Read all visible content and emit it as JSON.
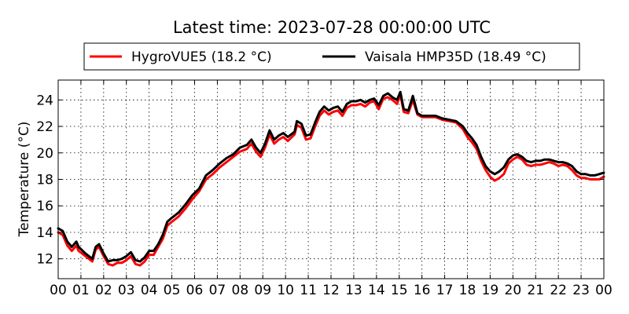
{
  "chart_data": {
    "type": "line",
    "title": "Latest time: 2023-07-28 00:00:00 UTC",
    "ylabel": "Temperature (°C)",
    "xlabel": "",
    "xlim": [
      0,
      24
    ],
    "ylim": [
      10.5,
      25.5
    ],
    "grid": true,
    "legend_placement": "top",
    "x_ticks": [
      0,
      1,
      2,
      3,
      4,
      5,
      6,
      7,
      8,
      9,
      10,
      11,
      12,
      13,
      14,
      15,
      16,
      17,
      18,
      19,
      20,
      21,
      22,
      23,
      24
    ],
    "x_tick_labels": [
      "00",
      "01",
      "02",
      "03",
      "04",
      "05",
      "06",
      "07",
      "08",
      "09",
      "10",
      "11",
      "12",
      "13",
      "14",
      "15",
      "16",
      "17",
      "18",
      "19",
      "20",
      "21",
      "22",
      "23",
      "00"
    ],
    "y_ticks": [
      12,
      14,
      16,
      18,
      20,
      22,
      24
    ],
    "y_tick_labels": [
      "12",
      "14",
      "16",
      "18",
      "20",
      "22",
      "24"
    ],
    "series": [
      {
        "name": "HygroVUE5 (18.2 °C)",
        "color": "#ff0000",
        "points": [
          [
            0,
            14.0
          ],
          [
            0.2,
            13.8
          ],
          [
            0.4,
            13.0
          ],
          [
            0.6,
            12.6
          ],
          [
            0.8,
            13.0
          ],
          [
            0.9,
            12.6
          ],
          [
            1.2,
            12.2
          ],
          [
            1.5,
            11.8
          ],
          [
            1.65,
            12.7
          ],
          [
            1.8,
            12.9
          ],
          [
            2.0,
            12.2
          ],
          [
            2.2,
            11.6
          ],
          [
            2.4,
            11.5
          ],
          [
            2.6,
            11.7
          ],
          [
            2.8,
            11.7
          ],
          [
            3.0,
            11.9
          ],
          [
            3.2,
            12.2
          ],
          [
            3.4,
            11.6
          ],
          [
            3.6,
            11.5
          ],
          [
            3.8,
            11.8
          ],
          [
            4.0,
            12.3
          ],
          [
            4.2,
            12.3
          ],
          [
            4.4,
            12.9
          ],
          [
            4.6,
            13.5
          ],
          [
            4.8,
            14.5
          ],
          [
            5.0,
            14.8
          ],
          [
            5.3,
            15.2
          ],
          [
            5.6,
            15.8
          ],
          [
            5.9,
            16.5
          ],
          [
            6.2,
            17.1
          ],
          [
            6.5,
            18.0
          ],
          [
            6.8,
            18.4
          ],
          [
            7.1,
            18.9
          ],
          [
            7.4,
            19.3
          ],
          [
            7.7,
            19.7
          ],
          [
            8.0,
            20.1
          ],
          [
            8.3,
            20.3
          ],
          [
            8.5,
            20.7
          ],
          [
            8.7,
            20.1
          ],
          [
            8.9,
            19.7
          ],
          [
            9.1,
            20.4
          ],
          [
            9.3,
            21.4
          ],
          [
            9.5,
            20.7
          ],
          [
            9.7,
            21.0
          ],
          [
            9.9,
            21.2
          ],
          [
            10.1,
            20.9
          ],
          [
            10.4,
            21.4
          ],
          [
            10.5,
            22.1
          ],
          [
            10.7,
            21.9
          ],
          [
            10.9,
            21.0
          ],
          [
            11.1,
            21.1
          ],
          [
            11.3,
            22.0
          ],
          [
            11.5,
            22.8
          ],
          [
            11.7,
            23.2
          ],
          [
            11.9,
            22.9
          ],
          [
            12.1,
            23.1
          ],
          [
            12.3,
            23.2
          ],
          [
            12.5,
            22.8
          ],
          [
            12.7,
            23.4
          ],
          [
            12.9,
            23.6
          ],
          [
            13.1,
            23.6
          ],
          [
            13.3,
            23.7
          ],
          [
            13.5,
            23.5
          ],
          [
            13.7,
            23.8
          ],
          [
            13.9,
            23.9
          ],
          [
            14.1,
            23.3
          ],
          [
            14.3,
            24.1
          ],
          [
            14.5,
            24.2
          ],
          [
            14.7,
            24.0
          ],
          [
            14.9,
            23.7
          ],
          [
            15.05,
            24.4
          ],
          [
            15.2,
            23.1
          ],
          [
            15.4,
            23.0
          ],
          [
            15.6,
            24.0
          ],
          [
            15.8,
            22.9
          ],
          [
            16.0,
            22.7
          ],
          [
            16.3,
            22.7
          ],
          [
            16.6,
            22.7
          ],
          [
            16.9,
            22.5
          ],
          [
            17.2,
            22.4
          ],
          [
            17.5,
            22.3
          ],
          [
            17.8,
            21.8
          ],
          [
            18.0,
            21.2
          ],
          [
            18.2,
            20.8
          ],
          [
            18.4,
            20.3
          ],
          [
            18.6,
            19.4
          ],
          [
            18.8,
            18.7
          ],
          [
            19.0,
            18.2
          ],
          [
            19.2,
            17.9
          ],
          [
            19.4,
            18.1
          ],
          [
            19.6,
            18.4
          ],
          [
            19.8,
            19.2
          ],
          [
            20.0,
            19.5
          ],
          [
            20.2,
            19.7
          ],
          [
            20.4,
            19.5
          ],
          [
            20.6,
            19.1
          ],
          [
            20.8,
            19.0
          ],
          [
            21.0,
            19.1
          ],
          [
            21.2,
            19.1
          ],
          [
            21.4,
            19.2
          ],
          [
            21.6,
            19.3
          ],
          [
            21.8,
            19.2
          ],
          [
            22.0,
            19.0
          ],
          [
            22.2,
            19.1
          ],
          [
            22.4,
            19.0
          ],
          [
            22.6,
            18.7
          ],
          [
            22.8,
            18.3
          ],
          [
            23.0,
            18.1
          ],
          [
            23.2,
            18.1
          ],
          [
            23.4,
            18.0
          ],
          [
            23.6,
            18.0
          ],
          [
            23.8,
            18.0
          ],
          [
            24.0,
            18.2
          ]
        ]
      },
      {
        "name": "Vaisala HMP35D (18.49 °C)",
        "color": "#000000",
        "points": [
          [
            0,
            14.3
          ],
          [
            0.2,
            14.1
          ],
          [
            0.4,
            13.3
          ],
          [
            0.6,
            12.9
          ],
          [
            0.8,
            13.3
          ],
          [
            0.9,
            12.9
          ],
          [
            1.2,
            12.4
          ],
          [
            1.5,
            12.0
          ],
          [
            1.65,
            12.9
          ],
          [
            1.8,
            13.1
          ],
          [
            2.0,
            12.4
          ],
          [
            2.2,
            11.8
          ],
          [
            2.4,
            11.9
          ],
          [
            2.6,
            11.9
          ],
          [
            2.8,
            12.0
          ],
          [
            3.0,
            12.2
          ],
          [
            3.2,
            12.5
          ],
          [
            3.4,
            11.9
          ],
          [
            3.6,
            11.8
          ],
          [
            3.8,
            12.1
          ],
          [
            4.0,
            12.6
          ],
          [
            4.2,
            12.6
          ],
          [
            4.4,
            13.1
          ],
          [
            4.6,
            13.8
          ],
          [
            4.8,
            14.8
          ],
          [
            5.0,
            15.1
          ],
          [
            5.3,
            15.5
          ],
          [
            5.6,
            16.1
          ],
          [
            5.9,
            16.8
          ],
          [
            6.2,
            17.3
          ],
          [
            6.5,
            18.3
          ],
          [
            6.8,
            18.7
          ],
          [
            7.1,
            19.2
          ],
          [
            7.4,
            19.6
          ],
          [
            7.7,
            19.9
          ],
          [
            8.0,
            20.4
          ],
          [
            8.3,
            20.6
          ],
          [
            8.5,
            21.0
          ],
          [
            8.7,
            20.4
          ],
          [
            8.9,
            20.0
          ],
          [
            9.1,
            20.7
          ],
          [
            9.3,
            21.7
          ],
          [
            9.5,
            21.0
          ],
          [
            9.7,
            21.3
          ],
          [
            9.9,
            21.5
          ],
          [
            10.1,
            21.2
          ],
          [
            10.4,
            21.6
          ],
          [
            10.5,
            22.4
          ],
          [
            10.7,
            22.2
          ],
          [
            10.9,
            21.3
          ],
          [
            11.1,
            21.4
          ],
          [
            11.3,
            22.3
          ],
          [
            11.5,
            23.1
          ],
          [
            11.7,
            23.5
          ],
          [
            11.9,
            23.2
          ],
          [
            12.1,
            23.4
          ],
          [
            12.3,
            23.5
          ],
          [
            12.5,
            23.1
          ],
          [
            12.7,
            23.7
          ],
          [
            12.9,
            23.9
          ],
          [
            13.1,
            23.9
          ],
          [
            13.3,
            24.0
          ],
          [
            13.5,
            23.8
          ],
          [
            13.7,
            24.0
          ],
          [
            13.9,
            24.1
          ],
          [
            14.1,
            23.6
          ],
          [
            14.3,
            24.3
          ],
          [
            14.5,
            24.5
          ],
          [
            14.7,
            24.2
          ],
          [
            14.9,
            24.0
          ],
          [
            15.05,
            24.6
          ],
          [
            15.2,
            23.3
          ],
          [
            15.4,
            23.2
          ],
          [
            15.6,
            24.3
          ],
          [
            15.8,
            23.0
          ],
          [
            16.0,
            22.8
          ],
          [
            16.3,
            22.8
          ],
          [
            16.6,
            22.8
          ],
          [
            16.9,
            22.6
          ],
          [
            17.2,
            22.5
          ],
          [
            17.5,
            22.4
          ],
          [
            17.8,
            22.0
          ],
          [
            18.0,
            21.5
          ],
          [
            18.2,
            21.1
          ],
          [
            18.4,
            20.6
          ],
          [
            18.6,
            19.7
          ],
          [
            18.8,
            19.0
          ],
          [
            19.0,
            18.6
          ],
          [
            19.2,
            18.4
          ],
          [
            19.4,
            18.6
          ],
          [
            19.6,
            18.9
          ],
          [
            19.8,
            19.5
          ],
          [
            20.0,
            19.8
          ],
          [
            20.2,
            19.9
          ],
          [
            20.4,
            19.7
          ],
          [
            20.6,
            19.4
          ],
          [
            20.8,
            19.3
          ],
          [
            21.0,
            19.4
          ],
          [
            21.2,
            19.4
          ],
          [
            21.4,
            19.5
          ],
          [
            21.6,
            19.5
          ],
          [
            21.8,
            19.4
          ],
          [
            22.0,
            19.3
          ],
          [
            22.2,
            19.3
          ],
          [
            22.4,
            19.2
          ],
          [
            22.6,
            19.0
          ],
          [
            22.8,
            18.6
          ],
          [
            23.0,
            18.4
          ],
          [
            23.2,
            18.4
          ],
          [
            23.4,
            18.3
          ],
          [
            23.6,
            18.3
          ],
          [
            23.8,
            18.4
          ],
          [
            24.0,
            18.5
          ]
        ]
      }
    ]
  }
}
